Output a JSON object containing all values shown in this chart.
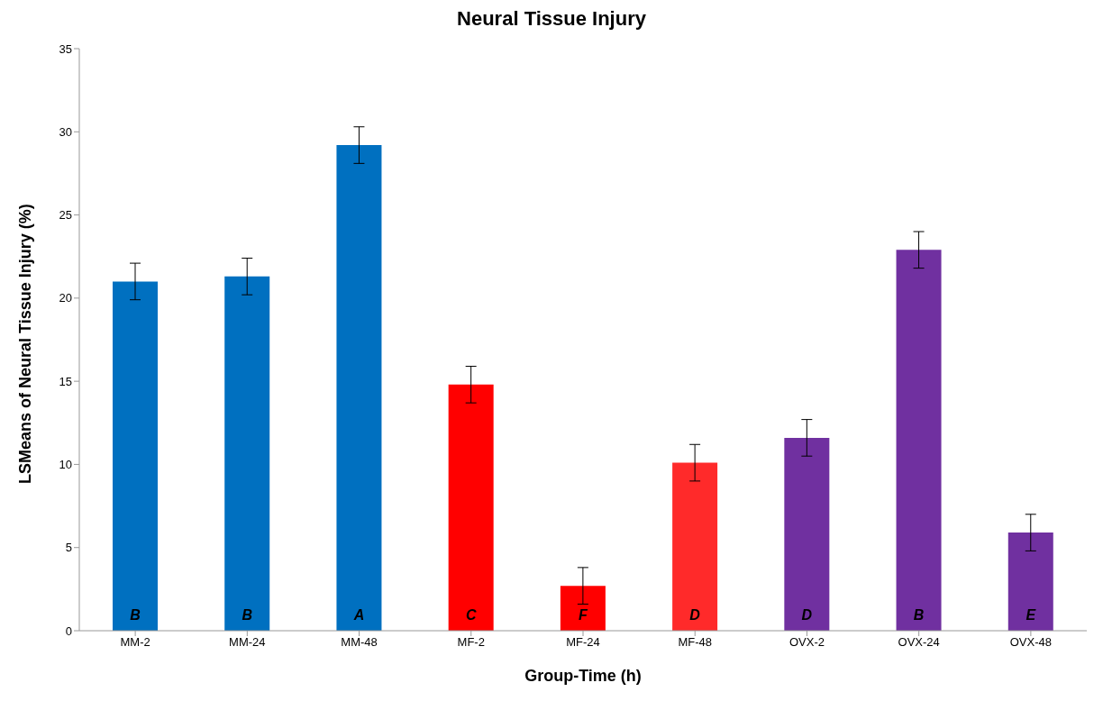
{
  "chart_data": {
    "type": "bar",
    "title": "Neural Tissue Injury",
    "xlabel": "Group-Time (h)",
    "ylabel": "LSMeans of Neural Tissue Injury (%)",
    "categories": [
      "MM-2",
      "MM-24",
      "MM-48",
      "MF-2",
      "MF-24",
      "MF-48",
      "OVX-2",
      "OVX-24",
      "OVX-48"
    ],
    "values": [
      21.0,
      21.3,
      29.2,
      14.8,
      2.7,
      10.1,
      11.6,
      22.9,
      5.9
    ],
    "errors": [
      1.1,
      1.1,
      1.1,
      1.1,
      1.1,
      1.1,
      1.1,
      1.1,
      1.1
    ],
    "colors": [
      "#0070c0",
      "#0070c0",
      "#0070c0",
      "#ff0000",
      "#ff0000",
      "#ff2a2a",
      "#7030a0",
      "#7030a0",
      "#7030a0"
    ],
    "value_labels": [
      "B",
      "B",
      "A",
      "C",
      "F",
      "D",
      "D",
      "B",
      "E"
    ],
    "ylim": [
      0,
      35
    ],
    "yticks": [
      0,
      5,
      10,
      15,
      20,
      25,
      30,
      35
    ],
    "grid": false,
    "legend": false
  }
}
